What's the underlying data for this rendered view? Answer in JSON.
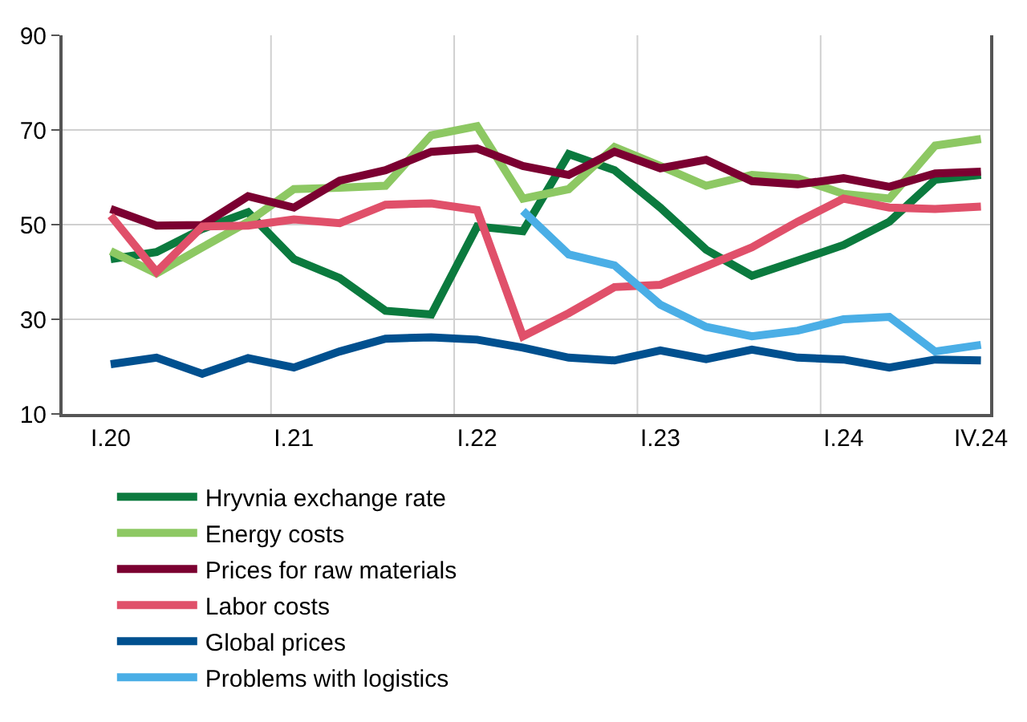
{
  "chart_data": {
    "type": "line",
    "categories": [
      "I.20",
      null,
      null,
      null,
      "I.21",
      null,
      null,
      null,
      "I.22",
      null,
      null,
      null,
      "I.23",
      null,
      null,
      null,
      "I.24",
      null,
      null,
      "IV.24"
    ],
    "series": [
      {
        "name": "Hryvnia exchange rate",
        "color": "#0b7a3e",
        "values": [
          42.7,
          44.2,
          49.1,
          52.6,
          42.7,
          38.7,
          31.8,
          31.0,
          49.6,
          48.6,
          64.9,
          61.5,
          53.6,
          44.7,
          39.2,
          42.4,
          45.7,
          50.6,
          59.5,
          60.5
        ]
      },
      {
        "name": "Energy costs",
        "color": "#8dc863",
        "values": [
          44.4,
          39.7,
          45.2,
          50.6,
          57.5,
          57.8,
          58.2,
          68.9,
          70.8,
          55.5,
          57.5,
          66.4,
          62.4,
          58.2,
          60.5,
          59.8,
          56.5,
          55.5,
          66.7,
          68.1
        ]
      },
      {
        "name": "Prices for raw materials",
        "color": "#7b0031",
        "values": [
          53.3,
          49.8,
          49.9,
          56.0,
          53.6,
          59.3,
          61.5,
          65.4,
          66.1,
          62.4,
          60.5,
          65.4,
          61.9,
          63.7,
          59.2,
          58.5,
          59.8,
          58.0,
          60.8,
          61.2
        ]
      },
      {
        "name": "Labor costs",
        "color": "#e0506a",
        "values": [
          51.9,
          40.0,
          49.6,
          49.8,
          51.1,
          50.3,
          54.2,
          54.5,
          53.1,
          26.4,
          31.3,
          36.8,
          37.3,
          41.2,
          45.2,
          50.6,
          55.5,
          53.6,
          53.3,
          53.8
        ]
      },
      {
        "name": "Global prices",
        "color": "#00508f",
        "values": [
          20.5,
          21.9,
          18.5,
          21.8,
          19.8,
          23.2,
          25.9,
          26.2,
          25.7,
          24.0,
          21.9,
          21.3,
          23.4,
          21.6,
          23.6,
          21.9,
          21.5,
          19.8,
          21.5,
          21.3
        ]
      },
      {
        "name": "Problems with logistics",
        "color": "#4aaee6",
        "values": [
          null,
          null,
          null,
          null,
          null,
          null,
          null,
          null,
          null,
          52.9,
          43.7,
          41.4,
          33.1,
          28.4,
          26.4,
          27.6,
          30.0,
          30.5,
          23.2,
          24.6
        ]
      }
    ],
    "ylim": [
      10,
      90
    ],
    "yticks": [
      10,
      30,
      50,
      70,
      90
    ],
    "grid": true,
    "legend": "bottom",
    "line_style": "solid"
  }
}
